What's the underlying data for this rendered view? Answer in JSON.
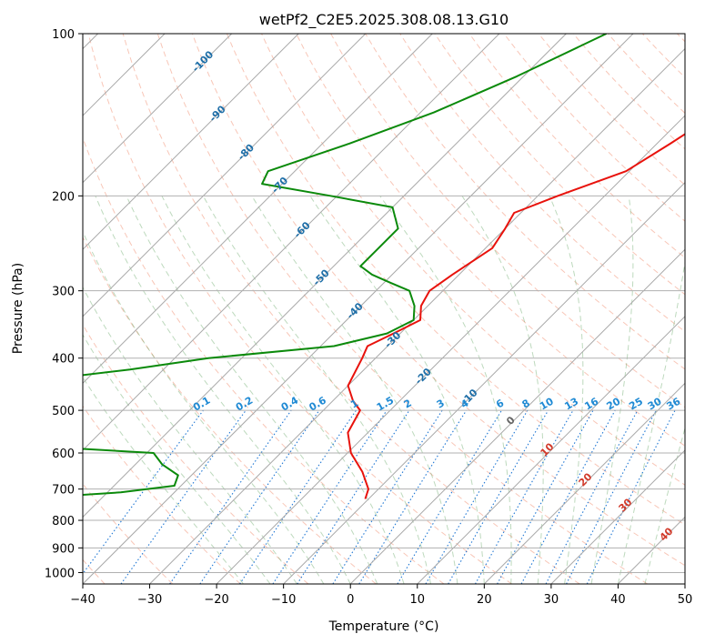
{
  "chart_data": {
    "type": "line",
    "subtype": "skew-t log-p diagram",
    "title": "wetPf2_C2E5.2025.308.08.13.G10",
    "xlabel": "Temperature (°C)",
    "ylabel": "Pressure (hPa)",
    "xlim": [
      -40,
      50
    ],
    "ylim": [
      1050,
      100
    ],
    "y_scale": "log",
    "grid": true,
    "x_ticks": [
      "−40",
      "−30",
      "−20",
      "−10",
      "0",
      "10",
      "20",
      "30",
      "40",
      "50"
    ],
    "y_ticks": [
      "100",
      "200",
      "300",
      "400",
      "500",
      "600",
      "700",
      "800",
      "900",
      "1000"
    ],
    "skewed_isotherm_labels": [
      "-100",
      "-90",
      "-80",
      "-70",
      "-60",
      "-50",
      "-40",
      "-30",
      "-20",
      "-10"
    ],
    "mixing_ratio_labels": [
      "0.1",
      "0.2",
      "0.4",
      "0.6",
      "1",
      "1.5",
      "2",
      "3",
      "4",
      "6",
      "8",
      "10",
      "13",
      "16",
      "20",
      "25",
      "30",
      "36"
    ],
    "moist_adiabat_labels": [
      "0",
      "10",
      "20",
      "30",
      "40"
    ],
    "series": [
      {
        "role": "temperature",
        "color": "#e8120c",
        "points": [
          [
            -9.5,
            100
          ],
          [
            -13.5,
            120
          ],
          [
            -15.5,
            140
          ],
          [
            -18,
            160
          ],
          [
            -20.5,
            180
          ],
          [
            -27,
            200
          ],
          [
            -31,
            215
          ],
          [
            -30,
            230
          ],
          [
            -29,
            250
          ],
          [
            -31,
            280
          ],
          [
            -32,
            300
          ],
          [
            -31,
            320
          ],
          [
            -29,
            340
          ],
          [
            -31,
            360
          ],
          [
            -33,
            380
          ],
          [
            -32,
            400
          ],
          [
            -30,
            450
          ],
          [
            -27,
            480
          ],
          [
            -24.5,
            500
          ],
          [
            -23,
            550
          ],
          [
            -19.5,
            600
          ],
          [
            -15,
            650
          ],
          [
            -11.5,
            700
          ],
          [
            -10.5,
            730
          ]
        ]
      },
      {
        "role": "dewpoint",
        "color": "#0b8a0b",
        "points": [
          [
            -44,
            100
          ],
          [
            -51,
            120
          ],
          [
            -58,
            140
          ],
          [
            -66,
            160
          ],
          [
            -74,
            180
          ],
          [
            -73,
            190
          ],
          [
            -61,
            200
          ],
          [
            -50,
            210
          ],
          [
            -46,
            230
          ],
          [
            -46,
            250
          ],
          [
            -46,
            270
          ],
          [
            -43,
            280
          ],
          [
            -39,
            290
          ],
          [
            -35,
            300
          ],
          [
            -32,
            320
          ],
          [
            -30,
            340
          ],
          [
            -32,
            360
          ],
          [
            -38,
            380
          ],
          [
            -55,
            400
          ],
          [
            -65,
            420
          ],
          [
            -83,
            450
          ],
          [
            -124,
            480
          ],
          [
            -133,
            560
          ],
          [
            -76,
            575
          ],
          [
            -49,
            600
          ],
          [
            -46,
            630
          ],
          [
            -42,
            660
          ],
          [
            -41,
            690
          ],
          [
            -48,
            710
          ],
          [
            -55,
            720
          ],
          [
            -56,
            725
          ]
        ]
      }
    ]
  }
}
